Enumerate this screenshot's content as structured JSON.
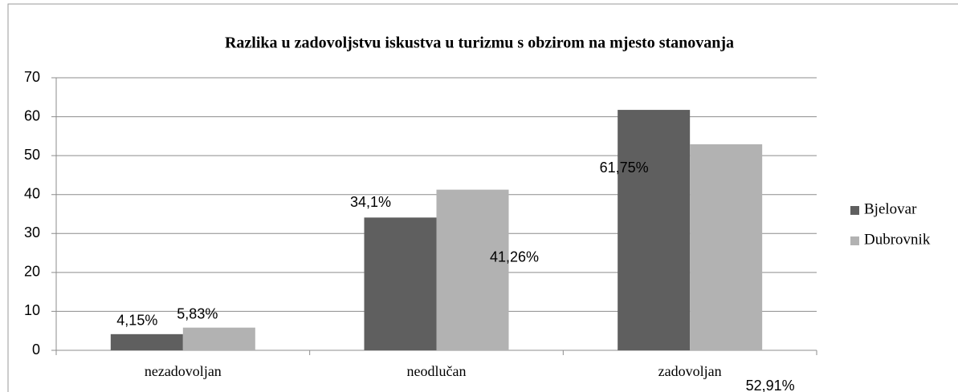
{
  "chart_data": {
    "type": "bar",
    "title": "Razlika u zadovoljstvu iskustva u turizmu s obzirom na mjesto stanovanja",
    "categories": [
      "nezadovoljan",
      "neodlučan",
      "zadovoljan"
    ],
    "series": [
      {
        "name": "Bjelovar",
        "color": "#5f5f5f",
        "values": [
          4.15,
          34.1,
          61.75
        ],
        "value_labels": [
          "4,15%",
          "34,1%",
          "61,75%"
        ]
      },
      {
        "name": "Dubrovnik",
        "color": "#b2b2b2",
        "values": [
          5.83,
          41.26,
          52.91
        ],
        "value_labels": [
          "5,83%",
          "41,26%",
          "52,91%"
        ]
      }
    ],
    "ylim": [
      0,
      70
    ],
    "yticks": [
      0,
      10,
      20,
      30,
      40,
      50,
      60,
      70
    ],
    "grid": true,
    "legend": "right"
  }
}
